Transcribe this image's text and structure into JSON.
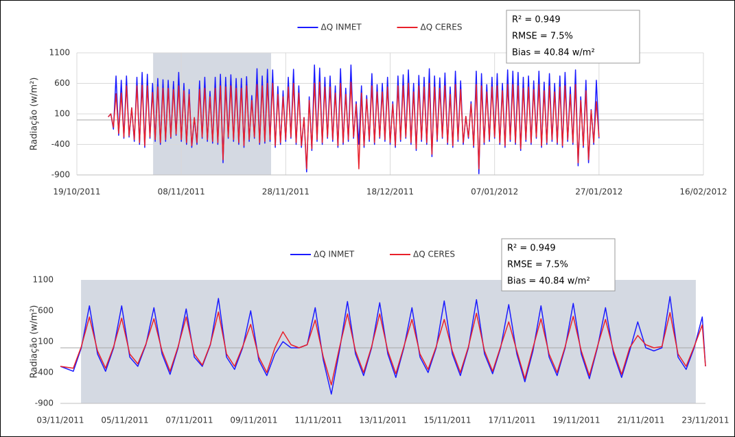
{
  "chart_data": [
    {
      "type": "line",
      "y_label": "Radiação (w/m²)",
      "annotations": [
        "R² = 0.949",
        "RMSE = 7.5%",
        "Bias = 40.84 w/m²"
      ],
      "legend": "top-center",
      "grid": true,
      "zero_line": true,
      "shaded_range": [
        14.6,
        37.2
      ],
      "xlim": [
        0,
        120
      ],
      "xticks": [
        {
          "value": 0,
          "label": "19/10/2011"
        },
        {
          "value": 20,
          "label": "08/11/2011"
        },
        {
          "value": 40,
          "label": "28/11/2011"
        },
        {
          "value": 60,
          "label": "18/12/2011"
        },
        {
          "value": 80,
          "label": "07/01/2012"
        },
        {
          "value": 100,
          "label": "27/01/2012"
        },
        {
          "value": 120,
          "label": "16/02/2012"
        }
      ],
      "ylim": [
        -900,
        1100
      ],
      "yticks": [
        -900,
        -400,
        100,
        600,
        1100
      ],
      "x": [
        6,
        6.5,
        7,
        7.5,
        8,
        8.5,
        9,
        9.5,
        10,
        10.5,
        11,
        11.5,
        12,
        12.5,
        13,
        13.5,
        14,
        14.5,
        15,
        15.5,
        16,
        16.5,
        17,
        17.5,
        18,
        18.5,
        19,
        19.5,
        20,
        20.5,
        21,
        21.5,
        22,
        22.5,
        23,
        23.5,
        24,
        24.5,
        25,
        25.5,
        26,
        26.5,
        27,
        27.5,
        28,
        28.5,
        29,
        29.5,
        30,
        30.5,
        31,
        31.5,
        32,
        32.5,
        33,
        33.5,
        34,
        34.5,
        35,
        35.5,
        36,
        36.5,
        37,
        37.5,
        38,
        38.5,
        39,
        39.5,
        40,
        40.5,
        41,
        41.5,
        42,
        42.5,
        43,
        43.5,
        44,
        44.5,
        45,
        45.5,
        46,
        46.5,
        47,
        47.5,
        48,
        48.5,
        49,
        49.5,
        50,
        50.5,
        51,
        51.5,
        52,
        52.5,
        53,
        53.5,
        54,
        54.5,
        55,
        55.5,
        56,
        56.5,
        57,
        57.5,
        58,
        58.5,
        59,
        59.5,
        60,
        60.5,
        61,
        61.5,
        62,
        62.5,
        63,
        63.5,
        64,
        64.5,
        65,
        65.5,
        66,
        66.5,
        67,
        67.5,
        68,
        68.5,
        69,
        69.5,
        70,
        70.5,
        71,
        71.5,
        72,
        72.5,
        73,
        73.5,
        74,
        74.5,
        75,
        75.5,
        76,
        76.5,
        77,
        77.5,
        78,
        78.5,
        79,
        79.5,
        80,
        80.5,
        81,
        81.5,
        82,
        82.5,
        83,
        83.5,
        84,
        84.5,
        85,
        85.5,
        86,
        86.5,
        87,
        87.5,
        88,
        88.5,
        89,
        89.5,
        90,
        90.5,
        91,
        91.5,
        92,
        92.5,
        93,
        93.5,
        94,
        94.5,
        95,
        95.5,
        96,
        96.5,
        97,
        97.5,
        98,
        98.5,
        99,
        99.5,
        100
      ],
      "series": [
        {
          "name": "ΔQ INMET",
          "color": "#1a1aff",
          "values": [
            50,
            100,
            -150,
            720,
            -250,
            650,
            -300,
            720,
            -280,
            200,
            -350,
            700,
            -400,
            780,
            -450,
            750,
            -300,
            600,
            -350,
            680,
            -400,
            660,
            -350,
            650,
            -300,
            630,
            -250,
            780,
            -350,
            600,
            -400,
            500,
            -450,
            30,
            -400,
            640,
            -300,
            700,
            -350,
            470,
            -380,
            700,
            -400,
            750,
            -700,
            700,
            -300,
            740,
            -350,
            680,
            -400,
            680,
            -450,
            710,
            -350,
            400,
            -300,
            840,
            -400,
            720,
            -380,
            830,
            -350,
            820,
            -450,
            550,
            -400,
            480,
            -350,
            700,
            -300,
            830,
            -400,
            560,
            -450,
            40,
            -850,
            380,
            -500,
            900,
            -350,
            850,
            -400,
            700,
            -300,
            720,
            -350,
            560,
            -450,
            840,
            -400,
            520,
            -350,
            900,
            -300,
            300,
            -400,
            560,
            -450,
            400,
            -350,
            760,
            -400,
            580,
            -300,
            600,
            -350,
            700,
            -400,
            300,
            -450,
            720,
            -350,
            740,
            -300,
            820,
            -400,
            600,
            -500,
            730,
            -350,
            700,
            -400,
            840,
            -600,
            720,
            -350,
            690,
            -300,
            770,
            -400,
            540,
            -450,
            800,
            -350,
            640,
            -400,
            60,
            -300,
            300,
            -450,
            800,
            -880,
            760,
            -400,
            580,
            -350,
            700,
            -300,
            760,
            -400,
            600,
            -450,
            820,
            -350,
            800,
            -400,
            780,
            -500,
            700,
            -350,
            720,
            -400,
            640,
            -300,
            800,
            -450,
            620,
            -400,
            760,
            -350,
            600,
            -400,
            720,
            -450,
            780,
            -350,
            540,
            -400,
            820,
            -750,
            380,
            -450,
            650,
            -700,
            170,
            -400,
            650,
            -300
          ]
        },
        {
          "name": "ΔQ CERES",
          "color": "#e8202a",
          "values": [
            50,
            100,
            -120,
            430,
            -220,
            440,
            -280,
            560,
            -260,
            200,
            -320,
            560,
            -370,
            570,
            -420,
            560,
            -280,
            450,
            -320,
            540,
            -370,
            520,
            -320,
            520,
            -280,
            500,
            -230,
            560,
            -320,
            480,
            -370,
            420,
            -420,
            40,
            -370,
            500,
            -280,
            520,
            -320,
            380,
            -350,
            520,
            -370,
            560,
            -650,
            540,
            -280,
            560,
            -320,
            520,
            -370,
            520,
            -420,
            560,
            -320,
            320,
            -280,
            580,
            -370,
            560,
            -350,
            600,
            -320,
            600,
            -420,
            420,
            -370,
            380,
            -320,
            540,
            -280,
            600,
            -370,
            440,
            -420,
            40,
            -800,
            320,
            -470,
            600,
            -320,
            620,
            -370,
            540,
            -280,
            540,
            -320,
            440,
            -420,
            600,
            -370,
            420,
            -320,
            620,
            -280,
            260,
            -800,
            440,
            -420,
            340,
            -320,
            560,
            -370,
            460,
            -280,
            460,
            -320,
            540,
            -370,
            260,
            -420,
            560,
            -320,
            560,
            -280,
            600,
            -370,
            460,
            -470,
            560,
            -320,
            540,
            -370,
            600,
            -560,
            540,
            -320,
            520,
            -280,
            560,
            -370,
            420,
            -420,
            580,
            -320,
            500,
            -370,
            60,
            -280,
            260,
            -420,
            580,
            -800,
            560,
            -370,
            460,
            -320,
            540,
            -280,
            560,
            -370,
            480,
            -420,
            580,
            -320,
            580,
            -370,
            560,
            -470,
            520,
            -320,
            540,
            -370,
            500,
            -280,
            580,
            -420,
            480,
            -370,
            560,
            -320,
            460,
            -370,
            540,
            -420,
            560,
            -320,
            420,
            -370,
            580,
            -700,
            320,
            -420,
            480,
            -650,
            160,
            -370,
            300,
            -280
          ]
        }
      ]
    },
    {
      "type": "line",
      "y_label": "Radiação (w/m²)",
      "annotations": [
        "R² = 0.949",
        "RMSE = 7.5%",
        "Bias = 40.84 w/m²"
      ],
      "legend": "top-center",
      "grid": false,
      "zero_line": true,
      "shaded_range": [
        0.64,
        19.7
      ],
      "xlim": [
        0,
        20
      ],
      "xticks": [
        {
          "value": 0,
          "label": "03/11/2011"
        },
        {
          "value": 2,
          "label": "05/11/2011"
        },
        {
          "value": 4,
          "label": "07/11/2011"
        },
        {
          "value": 6,
          "label": "09/11/2011"
        },
        {
          "value": 8,
          "label": "11/11/2011"
        },
        {
          "value": 10,
          "label": "13/11/2011"
        },
        {
          "value": 12,
          "label": "15/11/2011"
        },
        {
          "value": 14,
          "label": "17/11/2011"
        },
        {
          "value": 16,
          "label": "19/11/2011"
        },
        {
          "value": 18,
          "label": "21/11/2011"
        },
        {
          "value": 20,
          "label": "23/11/2011"
        }
      ],
      "ylim": [
        -900,
        1100
      ],
      "yticks": [
        -900,
        -400,
        100,
        600,
        1100
      ],
      "x": [
        0,
        0.4,
        0.65,
        0.9,
        1.15,
        1.4,
        1.65,
        1.9,
        2.15,
        2.4,
        2.65,
        2.9,
        3.15,
        3.4,
        3.65,
        3.9,
        4.15,
        4.4,
        4.65,
        4.9,
        5.15,
        5.4,
        5.65,
        5.9,
        6.15,
        6.4,
        6.65,
        6.9,
        7.15,
        7.4,
        7.65,
        7.9,
        8.15,
        8.4,
        8.65,
        8.9,
        9.15,
        9.4,
        9.65,
        9.9,
        10.15,
        10.4,
        10.65,
        10.9,
        11.15,
        11.4,
        11.65,
        11.9,
        12.15,
        12.4,
        12.65,
        12.9,
        13.15,
        13.4,
        13.65,
        13.9,
        14.15,
        14.4,
        14.65,
        14.9,
        15.15,
        15.4,
        15.65,
        15.9,
        16.15,
        16.4,
        16.65,
        16.9,
        17.15,
        17.4,
        17.65,
        17.9,
        18.15,
        18.4,
        18.65,
        18.9,
        19.15,
        19.4,
        19.65,
        19.9,
        20
      ],
      "series": [
        {
          "name": "ΔQ INMET",
          "color": "#1a1aff",
          "values": [
            -300,
            -380,
            0,
            680,
            -100,
            -380,
            0,
            680,
            -150,
            -300,
            50,
            650,
            -100,
            -430,
            0,
            630,
            -150,
            -300,
            50,
            800,
            -150,
            -350,
            0,
            600,
            -200,
            -450,
            -100,
            100,
            0,
            0,
            50,
            650,
            -200,
            -750,
            -50,
            750,
            -100,
            -450,
            0,
            730,
            -100,
            -480,
            0,
            650,
            -150,
            -400,
            0,
            760,
            -100,
            -450,
            0,
            780,
            -100,
            -420,
            0,
            700,
            -100,
            -550,
            -50,
            680,
            -150,
            -450,
            0,
            720,
            -100,
            -500,
            0,
            650,
            -100,
            -480,
            -50,
            420,
            0,
            -50,
            0,
            830,
            -150,
            -350,
            0,
            500,
            -300
          ]
        },
        {
          "name": "ΔQ CERES",
          "color": "#e8202a",
          "values": [
            -300,
            -330,
            20,
            500,
            -50,
            -330,
            20,
            480,
            -100,
            -260,
            60,
            470,
            -50,
            -380,
            20,
            500,
            -100,
            -280,
            60,
            580,
            -100,
            -300,
            20,
            380,
            -150,
            -400,
            0,
            260,
            50,
            0,
            50,
            450,
            -150,
            -600,
            0,
            550,
            -50,
            -400,
            20,
            550,
            -50,
            -420,
            20,
            460,
            -100,
            -350,
            20,
            460,
            -50,
            -400,
            20,
            560,
            -50,
            -380,
            20,
            420,
            -50,
            -500,
            0,
            470,
            -100,
            -400,
            20,
            510,
            -50,
            -450,
            20,
            460,
            -50,
            -430,
            0,
            200,
            50,
            0,
            20,
            570,
            -100,
            -300,
            20,
            370,
            -300
          ]
        }
      ]
    }
  ]
}
